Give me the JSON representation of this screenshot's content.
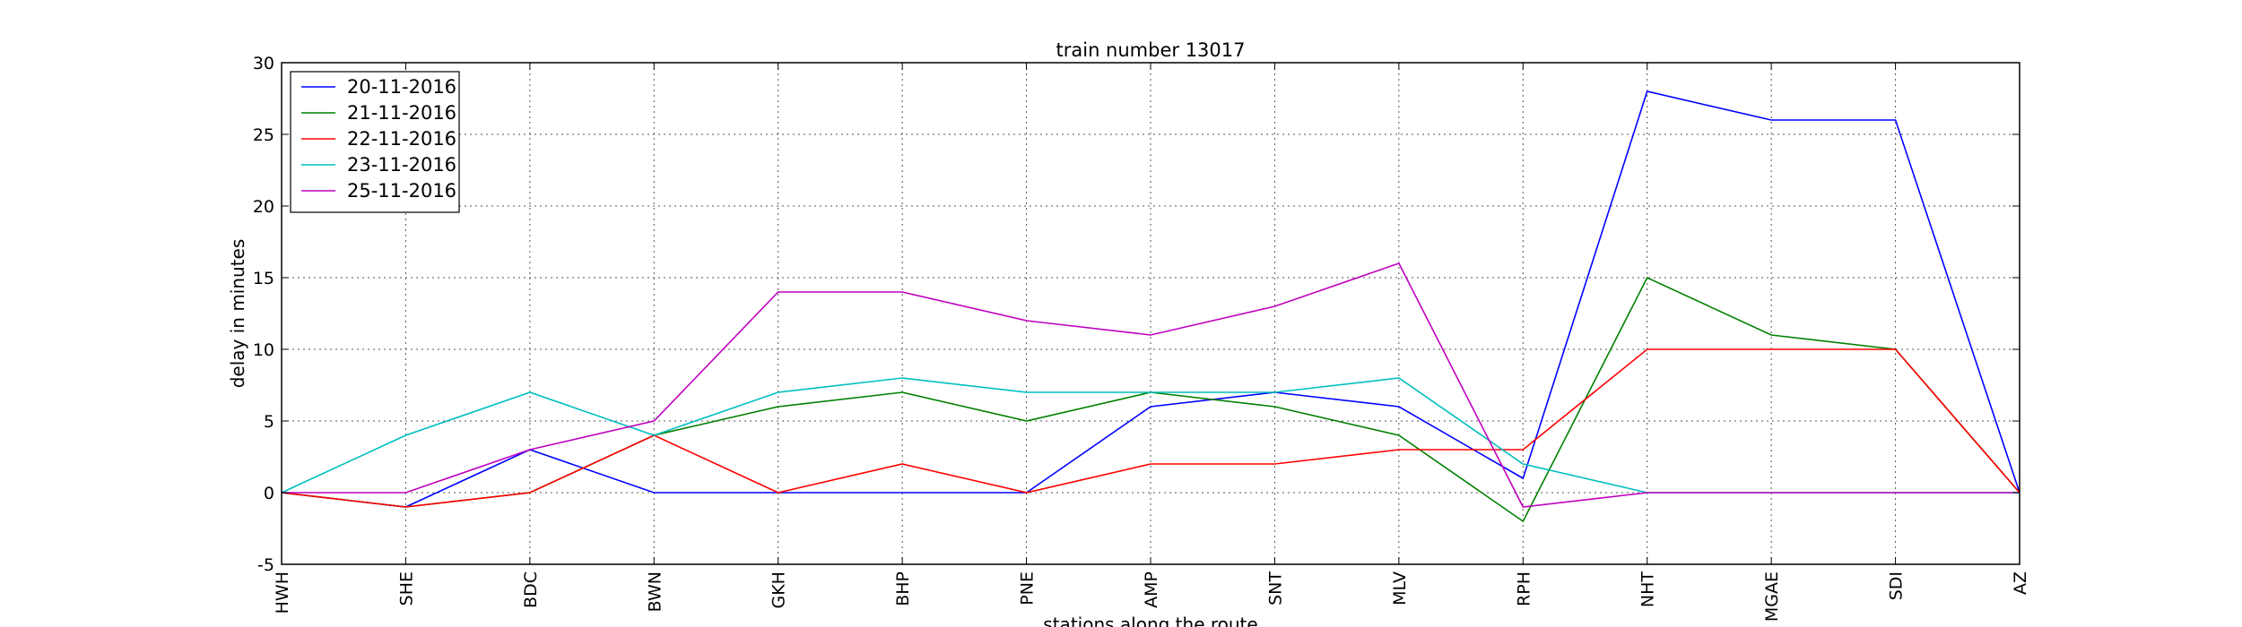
{
  "chart_data": {
    "type": "line",
    "title": "train number 13017",
    "xlabel": "stations along the route",
    "ylabel": "delay in minutes",
    "categories": [
      "HWH",
      "SHE",
      "BDC",
      "BWN",
      "GKH",
      "BHP",
      "PNE",
      "AMP",
      "SNT",
      "MLV",
      "RPH",
      "NHT",
      "MGAE",
      "SDI",
      "AZ"
    ],
    "ylim": [
      -5,
      30
    ],
    "yticks": [
      -5,
      0,
      5,
      10,
      15,
      20,
      25,
      30
    ],
    "grid": true,
    "legend_position": "top-left",
    "series": [
      {
        "name": "20-11-2016",
        "color": "#0000ff",
        "values": [
          0,
          -1,
          3,
          0,
          0,
          0,
          0,
          6,
          7,
          6,
          1,
          28,
          26,
          26,
          0
        ]
      },
      {
        "name": "21-11-2016",
        "color": "#008000",
        "values": [
          0,
          -1,
          0,
          4,
          6,
          7,
          5,
          7,
          6,
          4,
          -2,
          15,
          11,
          10,
          0
        ]
      },
      {
        "name": "22-11-2016",
        "color": "#ff0000",
        "values": [
          0,
          -1,
          0,
          4,
          0,
          2,
          0,
          2,
          2,
          3,
          3,
          10,
          10,
          10,
          0
        ]
      },
      {
        "name": "23-11-2016",
        "color": "#00bfbf",
        "values": [
          0,
          4,
          7,
          4,
          7,
          8,
          7,
          7,
          7,
          8,
          2,
          0,
          0,
          0,
          0
        ]
      },
      {
        "name": "25-11-2016",
        "color": "#bf00bf",
        "values": [
          0,
          0,
          3,
          5,
          14,
          14,
          12,
          11,
          13,
          16,
          -1,
          0,
          0,
          0,
          0
        ]
      }
    ]
  }
}
